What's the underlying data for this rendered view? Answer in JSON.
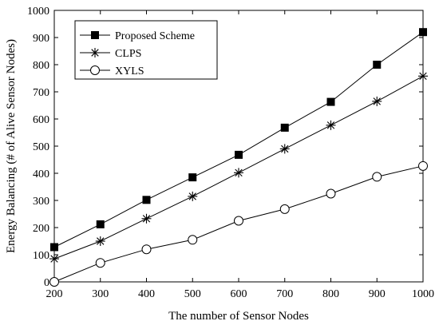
{
  "chart_data": {
    "type": "line",
    "xlabel": "The number of Sensor Nodes",
    "ylabel": "Energy Balancing (# of Alive Sensor Nodes)",
    "xlim": [
      200,
      1000
    ],
    "ylim": [
      0,
      1000
    ],
    "x_ticks": [
      200,
      300,
      400,
      500,
      600,
      700,
      800,
      900,
      1000
    ],
    "y_ticks": [
      0,
      100,
      200,
      300,
      400,
      500,
      600,
      700,
      800,
      900,
      1000
    ],
    "grid": false,
    "legend_position": "top-left",
    "x": [
      200,
      300,
      400,
      500,
      600,
      700,
      800,
      900,
      1000
    ],
    "series": [
      {
        "name": "Proposed Scheme",
        "marker": "square-filled",
        "values": [
          128,
          212,
          302,
          385,
          468,
          568,
          663,
          800,
          920
        ]
      },
      {
        "name": "CLPS",
        "marker": "asterisk",
        "values": [
          85,
          150,
          233,
          315,
          402,
          490,
          577,
          665,
          758
        ]
      },
      {
        "name": "XYLS",
        "marker": "circle-open",
        "values": [
          0,
          70,
          120,
          155,
          225,
          268,
          325,
          387,
          427
        ]
      }
    ]
  }
}
